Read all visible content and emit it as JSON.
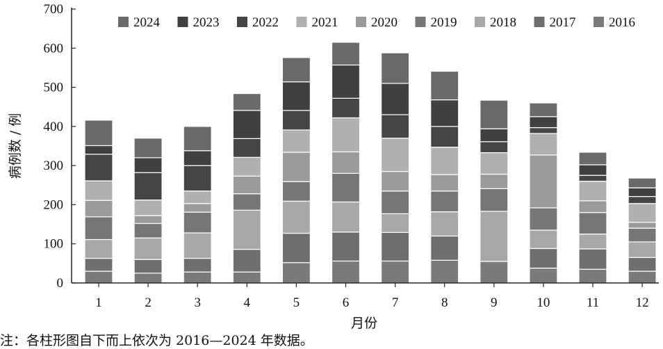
{
  "chart_data": {
    "type": "bar",
    "stacked": true,
    "title": "",
    "xlabel": "月份",
    "ylabel": "病例数 / 例",
    "ylim": [
      0,
      700
    ],
    "yticks": [
      "0",
      "100",
      "200",
      "300",
      "400",
      "500",
      "600",
      "700"
    ],
    "categories": [
      "1",
      "2",
      "3",
      "4",
      "5",
      "6",
      "7",
      "8",
      "9",
      "10",
      "11",
      "12"
    ],
    "legend_position": "top",
    "series": [
      {
        "name": "2016",
        "color": "#7a7a7a",
        "values": [
          30,
          25,
          28,
          28,
          52,
          56,
          56,
          58,
          55,
          38,
          35,
          30
        ]
      },
      {
        "name": "2017",
        "color": "#6e6e6e",
        "values": [
          33,
          35,
          35,
          58,
          75,
          74,
          73,
          62,
          0,
          50,
          52,
          35
        ]
      },
      {
        "name": "2018",
        "color": "#a8a8a8",
        "values": [
          48,
          55,
          65,
          100,
          82,
          77,
          48,
          62,
          128,
          47,
          38,
          40
        ]
      },
      {
        "name": "2019",
        "color": "#767676",
        "values": [
          58,
          37,
          53,
          42,
          50,
          73,
          58,
          53,
          58,
          57,
          55,
          35
        ]
      },
      {
        "name": "2020",
        "color": "#9a9a9a",
        "values": [
          42,
          20,
          22,
          45,
          75,
          55,
          50,
          42,
          37,
          135,
          30,
          15
        ]
      },
      {
        "name": "2021",
        "color": "#b0b0b0",
        "values": [
          50,
          40,
          32,
          48,
          57,
          87,
          85,
          70,
          55,
          55,
          50,
          48
        ]
      },
      {
        "name": "2022",
        "color": "#454545",
        "values": [
          68,
          70,
          65,
          48,
          50,
          50,
          60,
          53,
          28,
          15,
          15,
          18
        ]
      },
      {
        "name": "2023",
        "color": "#404040",
        "values": [
          22,
          38,
          38,
          72,
          73,
          85,
          80,
          68,
          33,
          28,
          27,
          22
        ]
      },
      {
        "name": "2024",
        "color": "#6a6a6a",
        "values": [
          65,
          50,
          62,
          43,
          62,
          58,
          78,
          73,
          73,
          35,
          32,
          25
        ]
      }
    ],
    "legend_order": [
      "2024",
      "2023",
      "2022",
      "2021",
      "2020",
      "2019",
      "2018",
      "2017",
      "2016"
    ]
  },
  "footnote": "注：各柱形图自下而上依次为 2016—2024 年数据。"
}
